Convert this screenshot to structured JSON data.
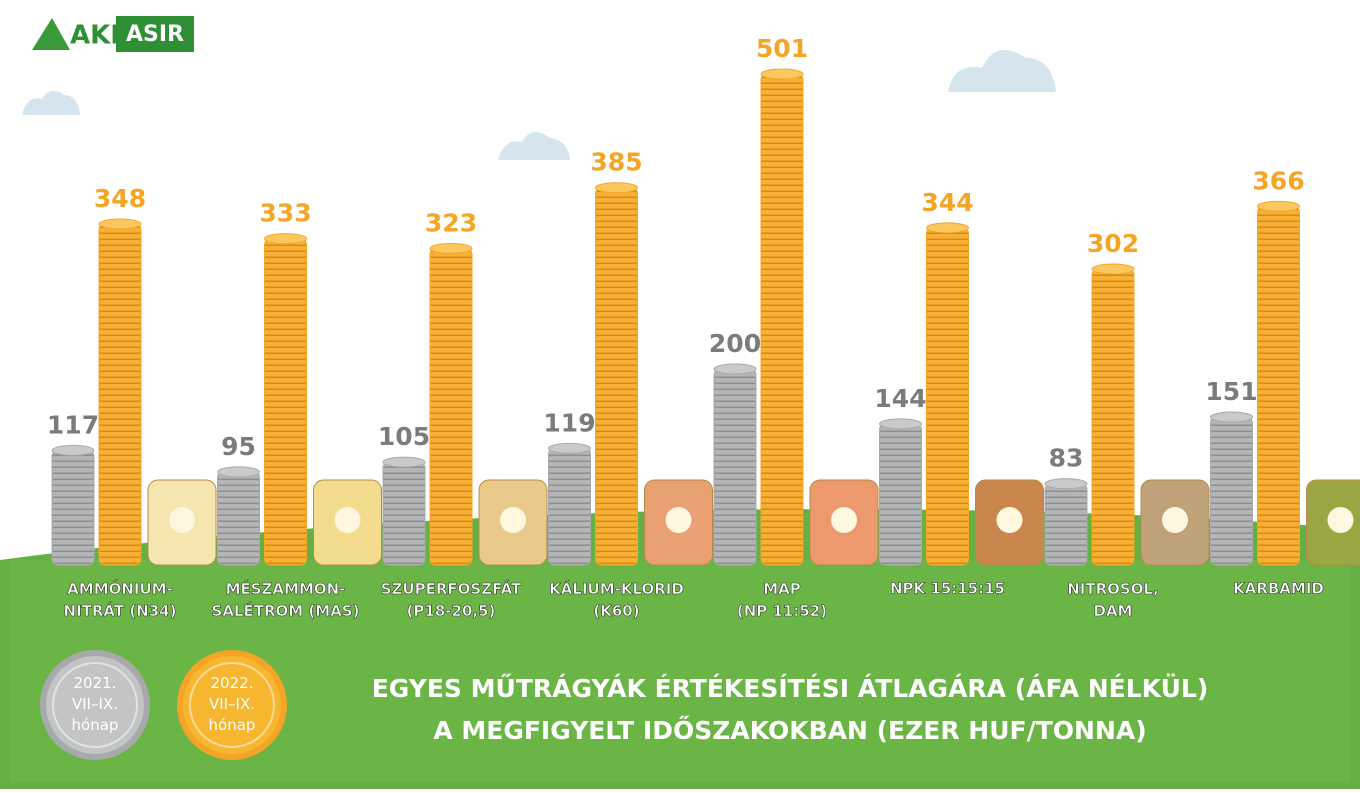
{
  "logo": {
    "left": "AKI",
    "right": "ASIR"
  },
  "chart_data": {
    "type": "coin-bar",
    "title": "EGYES MŰTRÁGYÁK ÉRTÉKESÍTÉSI ÁTLAGÁRA (ÁFA NÉLKÜL)\nA MEGFIGYELT IDŐSZAKOKBAN (EZER HUF/TONNA)",
    "categories": [
      "AMMÓNIUM-\nNITRÁT (N34)",
      "MÉSZAMMON-\nSALÉTROM (MAS)",
      "SZUPERFOSZFÁT\n(P18-20,5)",
      "KÁLIUM-KLORID\n(K60)",
      "MAP\n(NP 11:52)",
      "NPK 15:15:15",
      "NITROSOL,\nDAM",
      "KARBAMID"
    ],
    "series": [
      {
        "name": "2021.\nVII–IX.\nhónap",
        "color": "#a8a9ab",
        "values": [
          117,
          95,
          105,
          119,
          200,
          144,
          83,
          151
        ]
      },
      {
        "name": "2022.\nVII–IX.\nhónap",
        "color": "#f4a526",
        "values": [
          348,
          333,
          323,
          385,
          501,
          344,
          302,
          366
        ]
      }
    ]
  }
}
